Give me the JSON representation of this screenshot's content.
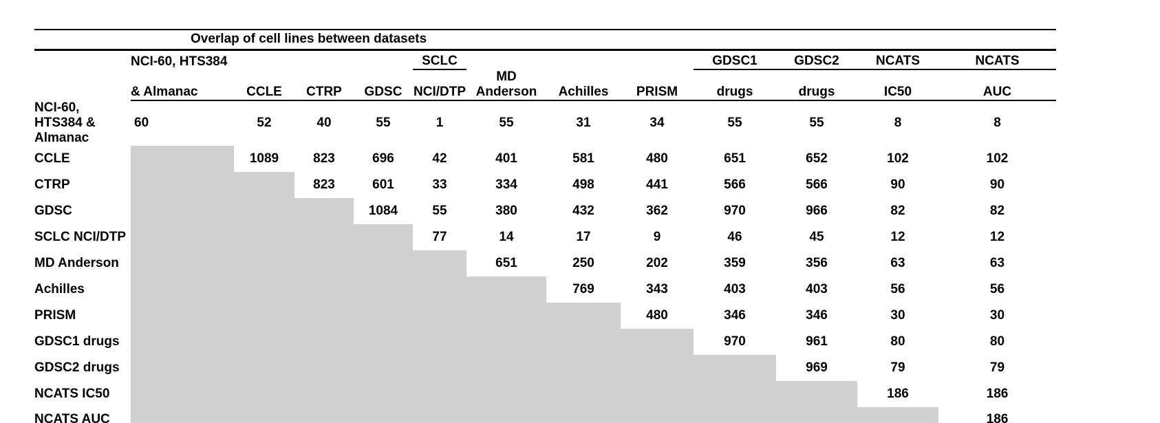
{
  "styles": {
    "background": "#ffffff",
    "text_color": "#000000",
    "rule_color": "#000000",
    "shaded_cell_color": "#d0d0d0"
  },
  "chart_data": {
    "type": "table",
    "title": "Overlap of cell lines between datasets",
    "column_headers_line1": [
      "NCI-60, HTS384",
      "",
      "",
      "",
      "SCLC",
      "",
      "",
      "",
      "GDSC1",
      "GDSC2",
      "NCATS",
      "NCATS"
    ],
    "column_headers_line2": [
      "& Almanac",
      "CCLE",
      "CTRP",
      "GDSC",
      "NCI/DTP",
      "MD Anderson",
      "Achilles",
      "PRISM",
      "drugs",
      "drugs",
      "IC50",
      "AUC"
    ],
    "header_group_underline_columns": [
      4,
      8,
      9,
      10,
      11
    ],
    "row_labels": [
      "NCI-60, HTS384 & Almanac",
      "CCLE",
      "CTRP",
      "GDSC",
      "SCLC NCI/DTP",
      "MD Anderson",
      "Achilles",
      "PRISM",
      "GDSC1 drugs",
      "GDSC2 drugs",
      "NCATS IC50",
      "NCATS AUC"
    ],
    "matrix": [
      [
        60,
        52,
        40,
        55,
        1,
        55,
        31,
        34,
        55,
        55,
        8,
        8
      ],
      [
        null,
        1089,
        823,
        696,
        42,
        401,
        581,
        480,
        651,
        652,
        102,
        102
      ],
      [
        null,
        null,
        823,
        601,
        33,
        334,
        498,
        441,
        566,
        566,
        90,
        90
      ],
      [
        null,
        null,
        null,
        1084,
        55,
        380,
        432,
        362,
        970,
        966,
        82,
        82
      ],
      [
        null,
        null,
        null,
        null,
        77,
        14,
        17,
        9,
        46,
        45,
        12,
        12
      ],
      [
        null,
        null,
        null,
        null,
        null,
        651,
        250,
        202,
        359,
        356,
        63,
        63
      ],
      [
        null,
        null,
        null,
        null,
        null,
        null,
        769,
        343,
        403,
        403,
        56,
        56
      ],
      [
        null,
        null,
        null,
        null,
        null,
        null,
        null,
        480,
        346,
        346,
        30,
        30
      ],
      [
        null,
        null,
        null,
        null,
        null,
        null,
        null,
        null,
        970,
        961,
        80,
        80
      ],
      [
        null,
        null,
        null,
        null,
        null,
        null,
        null,
        null,
        null,
        969,
        79,
        79
      ],
      [
        null,
        null,
        null,
        null,
        null,
        null,
        null,
        null,
        null,
        null,
        186,
        186
      ],
      [
        null,
        null,
        null,
        null,
        null,
        null,
        null,
        null,
        null,
        null,
        null,
        186
      ]
    ],
    "shaded_lower_triangle": true,
    "legend_position": "none",
    "grid": false
  }
}
